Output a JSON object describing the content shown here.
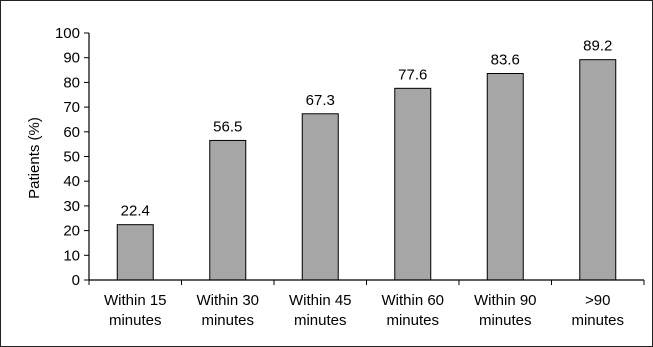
{
  "chart_data": {
    "type": "bar",
    "title": "",
    "xlabel": "",
    "ylabel": "Patients (%)",
    "ylim": [
      0,
      100
    ],
    "yticks": [
      0,
      10,
      20,
      30,
      40,
      50,
      60,
      70,
      80,
      90,
      100
    ],
    "categories": [
      [
        "Within 15",
        "minutes"
      ],
      [
        "Within 30",
        "minutes"
      ],
      [
        "Within 45",
        "minutes"
      ],
      [
        "Within 60",
        "minutes"
      ],
      [
        "Within 90",
        "minutes"
      ],
      [
        ">90",
        "minutes"
      ]
    ],
    "values": [
      22.4,
      56.5,
      67.3,
      77.6,
      83.6,
      89.2
    ],
    "data_labels": [
      "22.4",
      "56.5",
      "67.3",
      "77.6",
      "83.6",
      "89.2"
    ],
    "grid": false,
    "legend": "none",
    "colors": {
      "bar_fill": "#a6a6a6",
      "bar_stroke": "#000000",
      "axis": "#000000"
    }
  }
}
